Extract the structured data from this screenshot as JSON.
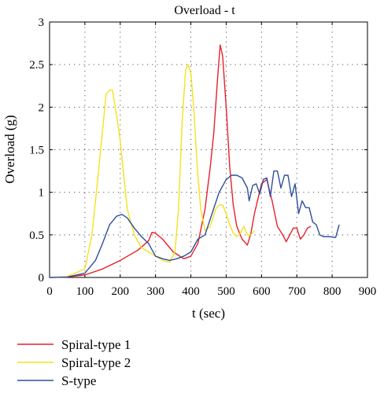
{
  "chart_data": {
    "type": "line",
    "title": "Overload - t",
    "xlabel": "t (sec)",
    "ylabel": "Overload (g)",
    "xlim": [
      0,
      900
    ],
    "ylim": [
      0,
      3
    ],
    "xticks": [
      0,
      100,
      200,
      300,
      400,
      500,
      600,
      700,
      800,
      900
    ],
    "yticks": [
      0,
      0.5,
      1,
      1.5,
      2,
      2.5,
      3
    ],
    "xtick_labels": [
      "0",
      "100",
      "200",
      "300",
      "400",
      "500",
      "600",
      "700",
      "800",
      "900"
    ],
    "ytick_labels": [
      "0",
      "0.5",
      "1",
      "1.5",
      "2",
      "2.5",
      "3"
    ],
    "grid": true,
    "legend_position": "below-left",
    "series": [
      {
        "name": "Spiral-type 1",
        "color": "#e8202a",
        "points": [
          [
            0,
            0
          ],
          [
            50,
            0.005
          ],
          [
            100,
            0.03
          ],
          [
            150,
            0.1
          ],
          [
            200,
            0.2
          ],
          [
            250,
            0.32
          ],
          [
            280,
            0.43
          ],
          [
            290,
            0.53
          ],
          [
            300,
            0.52
          ],
          [
            320,
            0.45
          ],
          [
            350,
            0.3
          ],
          [
            380,
            0.22
          ],
          [
            400,
            0.25
          ],
          [
            420,
            0.4
          ],
          [
            440,
            0.8
          ],
          [
            455,
            1.3
          ],
          [
            465,
            1.7
          ],
          [
            475,
            2.3
          ],
          [
            483,
            2.73
          ],
          [
            490,
            2.6
          ],
          [
            500,
            2.0
          ],
          [
            510,
            1.3
          ],
          [
            520,
            0.85
          ],
          [
            530,
            0.6
          ],
          [
            545,
            0.45
          ],
          [
            560,
            0.38
          ],
          [
            570,
            0.52
          ],
          [
            580,
            0.75
          ],
          [
            600,
            1.1
          ],
          [
            615,
            1.15
          ],
          [
            630,
            0.9
          ],
          [
            645,
            0.6
          ],
          [
            660,
            0.5
          ],
          [
            670,
            0.42
          ],
          [
            680,
            0.5
          ],
          [
            690,
            0.58
          ],
          [
            700,
            0.58
          ],
          [
            710,
            0.45
          ],
          [
            720,
            0.5
          ],
          [
            730,
            0.58
          ],
          [
            740,
            0.6
          ]
        ]
      },
      {
        "name": "Spiral-type 2",
        "color": "#f5e21a",
        "points": [
          [
            0,
            0
          ],
          [
            50,
            0.01
          ],
          [
            100,
            0.1
          ],
          [
            120,
            0.5
          ],
          [
            140,
            1.3
          ],
          [
            160,
            2.15
          ],
          [
            170,
            2.2
          ],
          [
            178,
            2.2
          ],
          [
            190,
            1.9
          ],
          [
            200,
            1.6
          ],
          [
            210,
            1.2
          ],
          [
            220,
            0.8
          ],
          [
            240,
            0.5
          ],
          [
            260,
            0.35
          ],
          [
            280,
            0.3
          ],
          [
            300,
            0.25
          ],
          [
            320,
            0.2
          ],
          [
            340,
            0.18
          ],
          [
            355,
            0.3
          ],
          [
            365,
            0.8
          ],
          [
            375,
            1.8
          ],
          [
            385,
            2.43
          ],
          [
            392,
            2.5
          ],
          [
            400,
            2.4
          ],
          [
            408,
            2.0
          ],
          [
            418,
            1.3
          ],
          [
            428,
            0.8
          ],
          [
            440,
            0.55
          ],
          [
            455,
            0.6
          ],
          [
            470,
            0.8
          ],
          [
            480,
            0.85
          ],
          [
            490,
            0.85
          ],
          [
            500,
            0.75
          ],
          [
            510,
            0.62
          ],
          [
            520,
            0.52
          ],
          [
            530,
            0.48
          ],
          [
            540,
            0.52
          ],
          [
            550,
            0.6
          ],
          [
            560,
            0.5
          ],
          [
            570,
            0.5
          ],
          [
            580,
            0.55
          ]
        ]
      },
      {
        "name": "S-type",
        "color": "#2d4f9c",
        "points": [
          [
            0,
            0
          ],
          [
            50,
            0.005
          ],
          [
            100,
            0.05
          ],
          [
            130,
            0.2
          ],
          [
            150,
            0.4
          ],
          [
            170,
            0.62
          ],
          [
            190,
            0.72
          ],
          [
            205,
            0.74
          ],
          [
            220,
            0.7
          ],
          [
            240,
            0.58
          ],
          [
            260,
            0.48
          ],
          [
            280,
            0.4
          ],
          [
            300,
            0.25
          ],
          [
            320,
            0.22
          ],
          [
            340,
            0.2
          ],
          [
            360,
            0.22
          ],
          [
            380,
            0.25
          ],
          [
            400,
            0.3
          ],
          [
            420,
            0.45
          ],
          [
            440,
            0.5
          ],
          [
            460,
            0.75
          ],
          [
            480,
            1.0
          ],
          [
            500,
            1.15
          ],
          [
            515,
            1.2
          ],
          [
            530,
            1.2
          ],
          [
            545,
            1.17
          ],
          [
            560,
            1.05
          ],
          [
            565,
            0.9
          ],
          [
            575,
            1.08
          ],
          [
            585,
            1.1
          ],
          [
            595,
            0.98
          ],
          [
            605,
            1.15
          ],
          [
            615,
            1.17
          ],
          [
            625,
            0.95
          ],
          [
            635,
            1.25
          ],
          [
            645,
            1.25
          ],
          [
            655,
            1.05
          ],
          [
            665,
            1.2
          ],
          [
            675,
            1.2
          ],
          [
            685,
            0.95
          ],
          [
            695,
            1.1
          ],
          [
            705,
            0.75
          ],
          [
            715,
            0.9
          ],
          [
            725,
            0.82
          ],
          [
            735,
            0.82
          ],
          [
            745,
            0.65
          ],
          [
            755,
            0.62
          ],
          [
            765,
            0.5
          ],
          [
            775,
            0.48
          ],
          [
            790,
            0.48
          ],
          [
            810,
            0.47
          ],
          [
            820,
            0.62
          ]
        ]
      }
    ]
  }
}
